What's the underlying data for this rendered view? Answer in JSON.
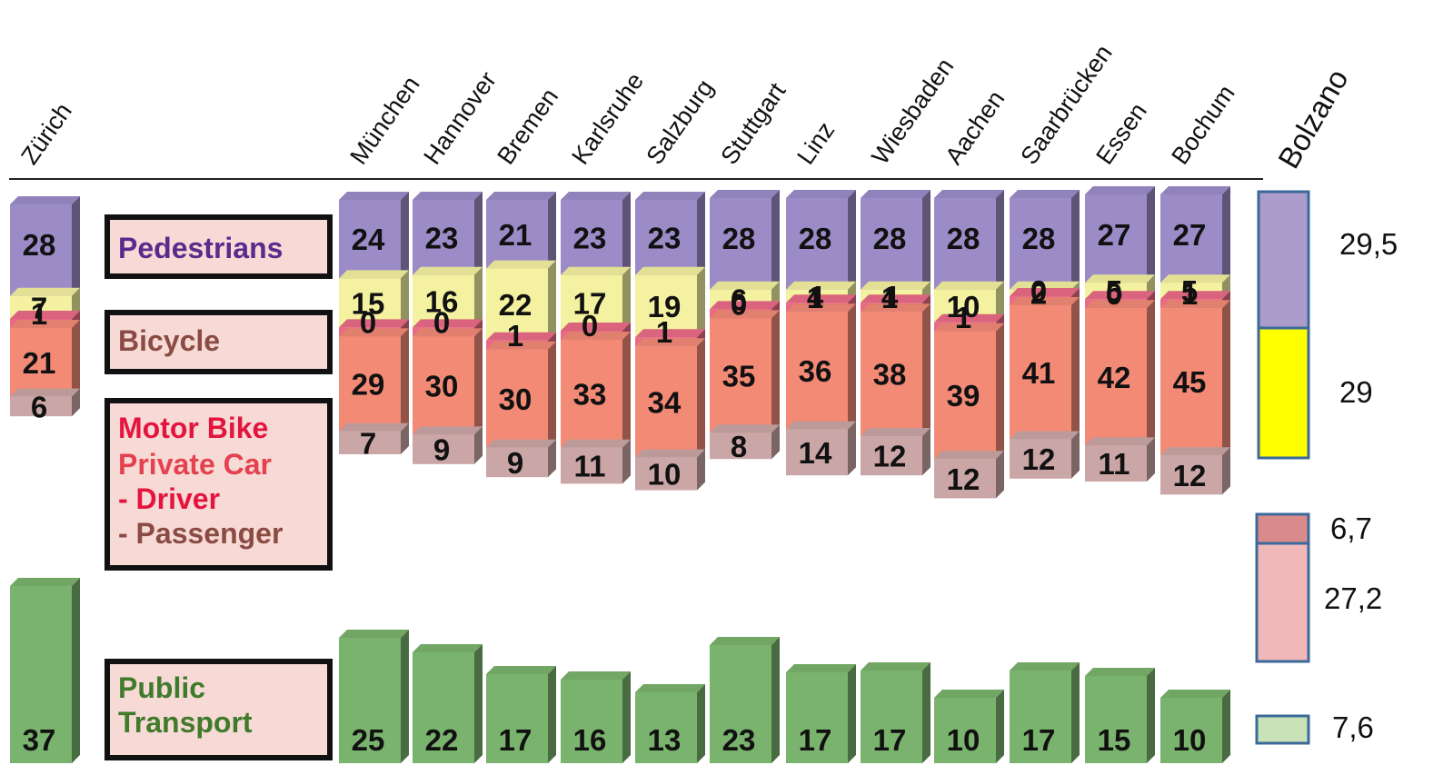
{
  "chart_data": {
    "type": "bar",
    "stacked": true,
    "categories": [
      "Zürich",
      "München",
      "Hannover",
      "Bremen",
      "Karlsruhe",
      "Salzburg",
      "Stuttgart",
      "Linz",
      "Wiesbaden",
      "Aachen",
      "Saarbrücken",
      "Essen",
      "Bochum"
    ],
    "series": [
      {
        "name": "Pedestrians",
        "values": [
          28,
          24,
          23,
          21,
          23,
          23,
          28,
          28,
          28,
          28,
          28,
          27,
          27
        ]
      },
      {
        "name": "Bicycle",
        "values": [
          7,
          15,
          16,
          22,
          17,
          19,
          6,
          4,
          4,
          10,
          2,
          5,
          5
        ]
      },
      {
        "name": "Motor Bike",
        "values": [
          1,
          0,
          0,
          1,
          0,
          1,
          0,
          1,
          1,
          1,
          0,
          0,
          1
        ]
      },
      {
        "name": "Private Car - Driver",
        "values": [
          21,
          29,
          30,
          30,
          33,
          34,
          35,
          36,
          38,
          39,
          41,
          42,
          45
        ]
      },
      {
        "name": "Private Car - Passenger",
        "values": [
          6,
          7,
          9,
          9,
          11,
          10,
          8,
          14,
          12,
          12,
          12,
          11,
          12
        ]
      },
      {
        "name": "Public Transport",
        "values": [
          37,
          25,
          22,
          17,
          16,
          13,
          23,
          17,
          17,
          10,
          17,
          15,
          10
        ]
      }
    ],
    "legend": [
      {
        "key": "ped",
        "label": "Pedestrians",
        "color": "#5b2a8c"
      },
      {
        "key": "bike",
        "label": "Bicycle",
        "color": "#8a4b43"
      },
      {
        "key": "moto",
        "label": "Motor Bike",
        "color": "#e4153d"
      },
      {
        "key": "car",
        "label": "Private Car",
        "color": "#e4424f"
      },
      {
        "key": "drv",
        "label": "- Driver",
        "color": "#e4153d"
      },
      {
        "key": "pas",
        "label": "- Passenger",
        "color": "#8a4b43"
      },
      {
        "key": "pt1",
        "label": "Public",
        "color": "#3f7b2b"
      },
      {
        "key": "pt2",
        "label": "Transport",
        "color": "#3f7b2b"
      }
    ],
    "highlight": {
      "city": "Bolzano",
      "values": [
        {
          "mode": "Pedestrians",
          "label": "29,5",
          "color": "#ab9ccc"
        },
        {
          "mode": "Bicycle",
          "label": "29",
          "color": "#ffff00"
        },
        {
          "mode": "Motor Bike",
          "label": "6,7",
          "color": "#d98a8a"
        },
        {
          "mode": "Private Car",
          "label": "27,2",
          "color": "#f0b8b8"
        },
        {
          "mode": "Public Transport",
          "label": "7,6",
          "color": "#c9e2b7"
        }
      ]
    },
    "colors": {
      "ped": "#9b8cc8",
      "bike": "#f4f1a0",
      "moto": "#ea6a86",
      "drv": "#f28a76",
      "pas": "#cba6a6",
      "pt": "#79b36d"
    }
  }
}
